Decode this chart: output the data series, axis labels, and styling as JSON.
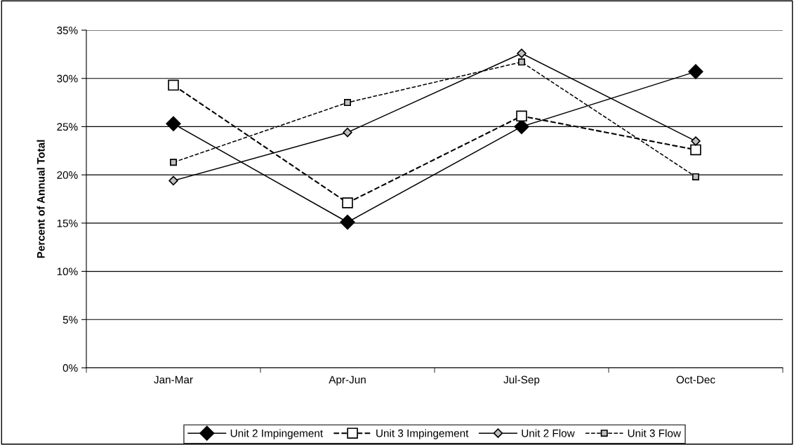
{
  "chart_data": {
    "type": "line",
    "ylabel": "Percent of Annual Total",
    "categories": [
      "Jan-Mar",
      "Apr-Jun",
      "Jul-Sep",
      "Oct-Dec"
    ],
    "series": [
      {
        "name": "Unit 2 Impingement",
        "color": "#000000",
        "marker": "diamond",
        "line_style": "solid",
        "values": [
          25.3,
          15.1,
          25.0,
          30.7
        ]
      },
      {
        "name": "Unit 3 Impingement",
        "color": "#ffffff",
        "marker": "square",
        "line_style": "dashed",
        "values": [
          29.3,
          17.1,
          26.1,
          22.6
        ]
      },
      {
        "name": "Unit 2 Flow",
        "color": "#c0c0c0",
        "marker": "diamond",
        "line_style": "solid",
        "values": [
          19.4,
          24.4,
          32.6,
          23.5
        ]
      },
      {
        "name": "Unit 3 Flow",
        "color": "#c0c0c0",
        "marker": "square",
        "line_style": "dashed",
        "values": [
          21.3,
          27.5,
          31.7,
          19.8
        ]
      }
    ],
    "ylim": [
      0,
      35
    ],
    "yticks": [
      {
        "value": 0,
        "label": "0%"
      },
      {
        "value": 5,
        "label": "5%"
      },
      {
        "value": 10,
        "label": "10%"
      },
      {
        "value": 15,
        "label": "15%"
      },
      {
        "value": 20,
        "label": "20%"
      },
      {
        "value": 25,
        "label": "25%"
      },
      {
        "value": 30,
        "label": "30%"
      },
      {
        "value": 35,
        "label": "35%"
      }
    ],
    "grid": "y",
    "legend": "bottom"
  }
}
